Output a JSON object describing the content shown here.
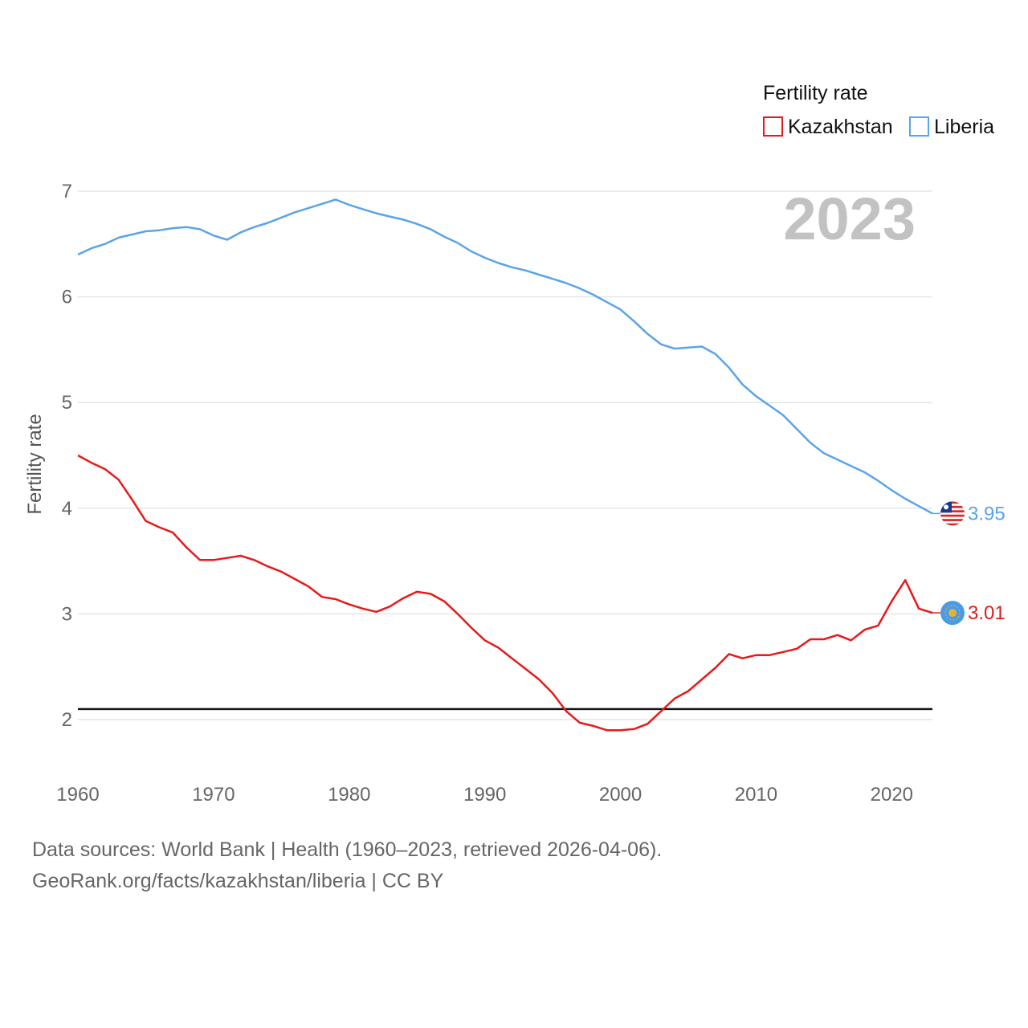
{
  "chart_data": {
    "type": "line",
    "title": "Fertility rate",
    "ylabel": "Fertility rate",
    "xlabel": "",
    "year_label": "2023",
    "x_range": [
      1960,
      2023
    ],
    "ylim": [
      1.5,
      7.2
    ],
    "y_ticks": [
      2,
      3,
      4,
      5,
      6,
      7
    ],
    "x_ticks": [
      1960,
      1970,
      1980,
      1990,
      2000,
      2010,
      2020
    ],
    "reference_line": 2.1,
    "grid": true,
    "legend_position": "top-right",
    "x": [
      1960,
      1961,
      1962,
      1963,
      1964,
      1965,
      1966,
      1967,
      1968,
      1969,
      1970,
      1971,
      1972,
      1973,
      1974,
      1975,
      1976,
      1977,
      1978,
      1979,
      1980,
      1981,
      1982,
      1983,
      1984,
      1985,
      1986,
      1987,
      1988,
      1989,
      1990,
      1991,
      1992,
      1993,
      1994,
      1995,
      1996,
      1997,
      1998,
      1999,
      2000,
      2001,
      2002,
      2003,
      2004,
      2005,
      2006,
      2007,
      2008,
      2009,
      2010,
      2011,
      2012,
      2013,
      2014,
      2015,
      2016,
      2017,
      2018,
      2019,
      2020,
      2021,
      2022,
      2023
    ],
    "series": [
      {
        "name": "Kazakhstan",
        "color": "#e8191a",
        "end_label": "3.01",
        "icon": "kazakhstan-flag-icon",
        "values": [
          4.5,
          4.43,
          4.37,
          4.27,
          4.08,
          3.88,
          3.82,
          3.77,
          3.63,
          3.51,
          3.51,
          3.53,
          3.55,
          3.51,
          3.45,
          3.4,
          3.33,
          3.26,
          3.16,
          3.14,
          3.09,
          3.05,
          3.02,
          3.07,
          3.15,
          3.21,
          3.19,
          3.12,
          3.0,
          2.87,
          2.75,
          2.68,
          2.58,
          2.48,
          2.38,
          2.25,
          2.08,
          1.97,
          1.94,
          1.9,
          1.9,
          1.91,
          1.96,
          2.08,
          2.2,
          2.27,
          2.38,
          2.49,
          2.62,
          2.58,
          2.61,
          2.61,
          2.64,
          2.67,
          2.76,
          2.76,
          2.8,
          2.75,
          2.85,
          2.89,
          3.12,
          3.32,
          3.05,
          3.01
        ]
      },
      {
        "name": "Liberia",
        "color": "#5aa4e8",
        "end_label": "3.95",
        "icon": "liberia-flag-icon",
        "values": [
          6.4,
          6.46,
          6.5,
          6.56,
          6.59,
          6.62,
          6.63,
          6.65,
          6.66,
          6.64,
          6.58,
          6.54,
          6.61,
          6.66,
          6.7,
          6.75,
          6.8,
          6.84,
          6.88,
          6.92,
          6.87,
          6.83,
          6.79,
          6.76,
          6.73,
          6.69,
          6.64,
          6.57,
          6.51,
          6.43,
          6.37,
          6.32,
          6.28,
          6.25,
          6.21,
          6.17,
          6.13,
          6.08,
          6.02,
          5.95,
          5.88,
          5.77,
          5.65,
          5.55,
          5.51,
          5.52,
          5.53,
          5.46,
          5.33,
          5.17,
          5.06,
          4.97,
          4.88,
          4.75,
          4.62,
          4.52,
          4.46,
          4.4,
          4.34,
          4.26,
          4.17,
          4.09,
          4.02,
          3.95
        ]
      }
    ]
  },
  "footer": {
    "line1": "Data sources: World Bank | Health (1960–2023, retrieved 2026-04-06).",
    "line2": "GeoRank.org/facts/kazakhstan/liberia | CC BY"
  }
}
